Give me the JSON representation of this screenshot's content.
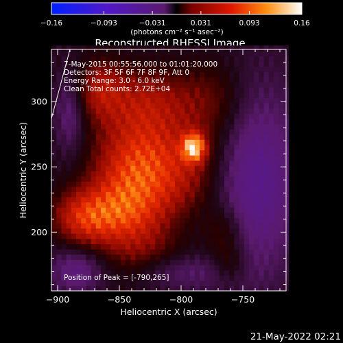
{
  "chart_data": {
    "type": "heatmap",
    "title": "Reconstructed RHESSI Image",
    "xlabel": "Heliocentric X (arcsec)",
    "ylabel": "Heliocentric Y (arcsec)",
    "xlim": [
      -905,
      -715
    ],
    "ylim": [
      155,
      340
    ],
    "x_ticks": [
      -900,
      -850,
      -800,
      -750
    ],
    "y_ticks": [
      200,
      250,
      300
    ],
    "colorbar": {
      "ticks": [
        "-0.16",
        "-0.093",
        "-0.031",
        "0.031",
        "0.093",
        "0.16"
      ],
      "range": [
        -0.16,
        0.16
      ],
      "units_line": "(photons cm⁻² s⁻¹ asec⁻²)"
    },
    "annotations": {
      "time": "7-May-2015 00:55:56.000 to 01:01:20.000",
      "detectors": "Detectors: 3F 5F 6F 7F 8F 9F, Att 0",
      "energy": "Energy Range: 3.0 - 6.0 keV",
      "clean": "Clean    Total counts: 2.72E+04",
      "peak": "Position of Peak = [-790,265]"
    },
    "peak": {
      "x": -790,
      "y": 265,
      "value": 0.16
    },
    "blobs": [
      {
        "x": -790,
        "y": 265,
        "sx": 6,
        "sy": 7,
        "a": 0.13
      },
      {
        "x": -815,
        "y": 250,
        "sx": 30,
        "sy": 25,
        "a": 0.06
      },
      {
        "x": -840,
        "y": 230,
        "sx": 20,
        "sy": 35,
        "a": 0.055
      },
      {
        "x": -865,
        "y": 215,
        "sx": 22,
        "sy": 15,
        "a": 0.055
      },
      {
        "x": -880,
        "y": 210,
        "sx": 15,
        "sy": 12,
        "a": 0.035
      },
      {
        "x": -830,
        "y": 300,
        "sx": 25,
        "sy": 18,
        "a": 0.04
      },
      {
        "x": -865,
        "y": 310,
        "sx": 12,
        "sy": 15,
        "a": 0.04
      },
      {
        "x": -775,
        "y": 300,
        "sx": 20,
        "sy": 22,
        "a": 0.025
      },
      {
        "x": -765,
        "y": 200,
        "sx": 12,
        "sy": 15,
        "a": 0.025
      },
      {
        "x": -820,
        "y": 185,
        "sx": 25,
        "sy": 12,
        "a": 0.01
      },
      {
        "x": -740,
        "y": 240,
        "sx": 25,
        "sy": 50,
        "a": -0.04
      },
      {
        "x": -885,
        "y": 170,
        "sx": 15,
        "sy": 12,
        "a": -0.03
      },
      {
        "x": -890,
        "y": 290,
        "sx": 8,
        "sy": 20,
        "a": -0.025
      },
      {
        "x": -800,
        "y": 170,
        "sx": 30,
        "sy": 10,
        "a": -0.02
      },
      {
        "x": -760,
        "y": 175,
        "sx": 10,
        "sy": 10,
        "a": 0.02
      }
    ],
    "limb_line": {
      "x1": -905,
      "y1": 287,
      "x2": -890,
      "y2": 340
    }
  },
  "footer": {
    "timestamp": "21-May-2022 02:21"
  }
}
